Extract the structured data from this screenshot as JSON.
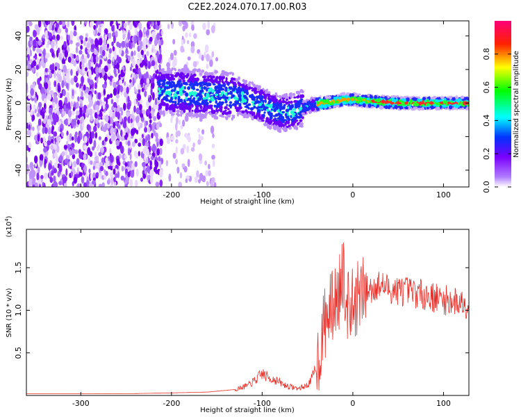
{
  "title": "C2E2.2024.070.17.00.R03",
  "chart_data": [
    {
      "type": "heatmap",
      "xlabel": "Height of straight line (km)",
      "ylabel": "Frequency (Hz)",
      "xlim": [
        -360,
        128
      ],
      "ylim": [
        -50,
        49
      ],
      "x_ticks": [
        -300,
        -200,
        -100,
        0,
        100
      ],
      "y_ticks": [
        -40,
        -20,
        0,
        20,
        40
      ],
      "colorbar": {
        "label": "Normalized spectral amplitude",
        "range": [
          0,
          1
        ],
        "ticks": [
          "0.0",
          "0.2",
          "0.4",
          "0.6",
          "0.8"
        ],
        "colors": [
          "#ffffff",
          "#7a00ff",
          "#0033ff",
          "#00ffff",
          "#00ff00",
          "#ffff00",
          "#ff0000",
          "#ff0066"
        ]
      },
      "ridge": {
        "x": [
          -210,
          -180,
          -150,
          -125,
          -110,
          -95,
          -80,
          -65,
          -55,
          -45,
          -30,
          -20,
          -10,
          0,
          20,
          50,
          80,
          100,
          128
        ],
        "y": [
          7,
          6,
          5,
          4,
          1,
          -3,
          -6,
          -5,
          -3,
          -1,
          0,
          1,
          2,
          2,
          1,
          0,
          0,
          0,
          0
        ]
      }
    },
    {
      "type": "line",
      "xlabel": "Height of straight line (km)",
      "ylabel": "SNR (10 * v/v)",
      "y_multiplier": "(x10",
      "y_multiplier_exp": "4",
      "y_multiplier_close": ")",
      "xlim": [
        -360,
        128
      ],
      "ylim": [
        0,
        1.95
      ],
      "x_ticks": [
        -300,
        -200,
        -100,
        0,
        100
      ],
      "y_ticks": [
        0.5,
        1.0,
        1.5
      ],
      "y_tick_labels": [
        "0.5",
        "1.0",
        "1.5"
      ],
      "color": "#e8302a",
      "series": [
        {
          "x": [
            -360,
            -300,
            -250,
            -200,
            -160,
            -130,
            -115,
            -105,
            -100,
            -95,
            -85,
            -75,
            -60,
            -50,
            -45,
            -40,
            -35,
            -30,
            -25,
            -20,
            -15,
            -12,
            -10,
            -5,
            0,
            5,
            10,
            20,
            30,
            40,
            60,
            80,
            100,
            128
          ],
          "y": [
            0.02,
            0.02,
            0.02,
            0.03,
            0.04,
            0.07,
            0.12,
            0.2,
            0.26,
            0.22,
            0.18,
            0.12,
            0.08,
            0.12,
            0.2,
            0.35,
            0.6,
            0.9,
            1.0,
            1.1,
            1.2,
            1.5,
            1.4,
            1.0,
            1.05,
            1.15,
            1.2,
            1.25,
            1.3,
            1.25,
            1.22,
            1.18,
            1.12,
            1.08
          ]
        }
      ]
    }
  ]
}
